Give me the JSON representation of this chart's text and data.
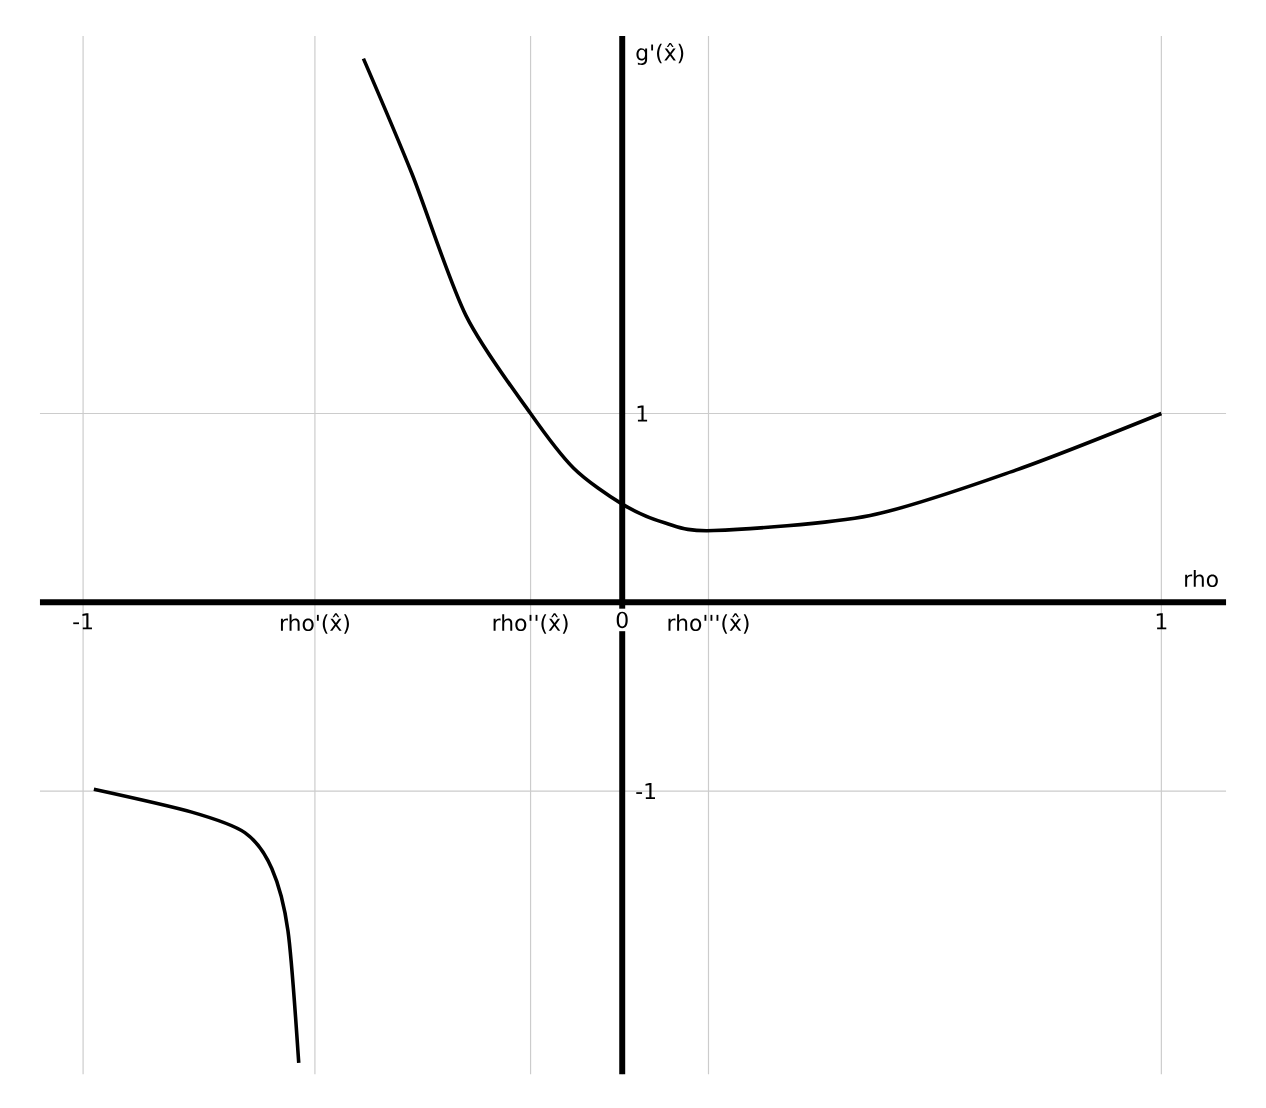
{
  "chart_data": {
    "type": "line",
    "xlabel": "rho",
    "ylabel": "g'(x̂)",
    "xlim": [
      -1.08,
      1.12
    ],
    "ylim": [
      -2.5,
      3.0
    ],
    "xticks": [
      -1,
      {
        "value": -0.57,
        "label": "rho'(x̂)"
      },
      {
        "value": -0.17,
        "label": "rho''(x̂)"
      },
      0,
      {
        "value": 0.16,
        "label": "rho'''(x̂)"
      },
      1
    ],
    "yticks": [
      -1,
      1
    ],
    "grid": true,
    "series": [
      {
        "color": "#000000",
        "x": [
          -0.48,
          -0.39,
          -0.29,
          -0.17,
          -0.09,
          0.0,
          0.08,
          0.17,
          0.46,
          0.73,
          1.0
        ],
        "values": [
          2.88,
          2.27,
          1.52,
          1.0,
          0.71,
          0.52,
          0.42,
          0.38,
          0.46,
          0.7,
          1.0
        ]
      },
      {
        "color": "#000000",
        "x": [
          -0.98,
          -0.8,
          -0.7,
          -0.65,
          -0.62,
          -0.6
        ],
        "values": [
          -0.99,
          -1.11,
          -1.22,
          -1.41,
          -1.74,
          -2.44
        ]
      }
    ]
  }
}
